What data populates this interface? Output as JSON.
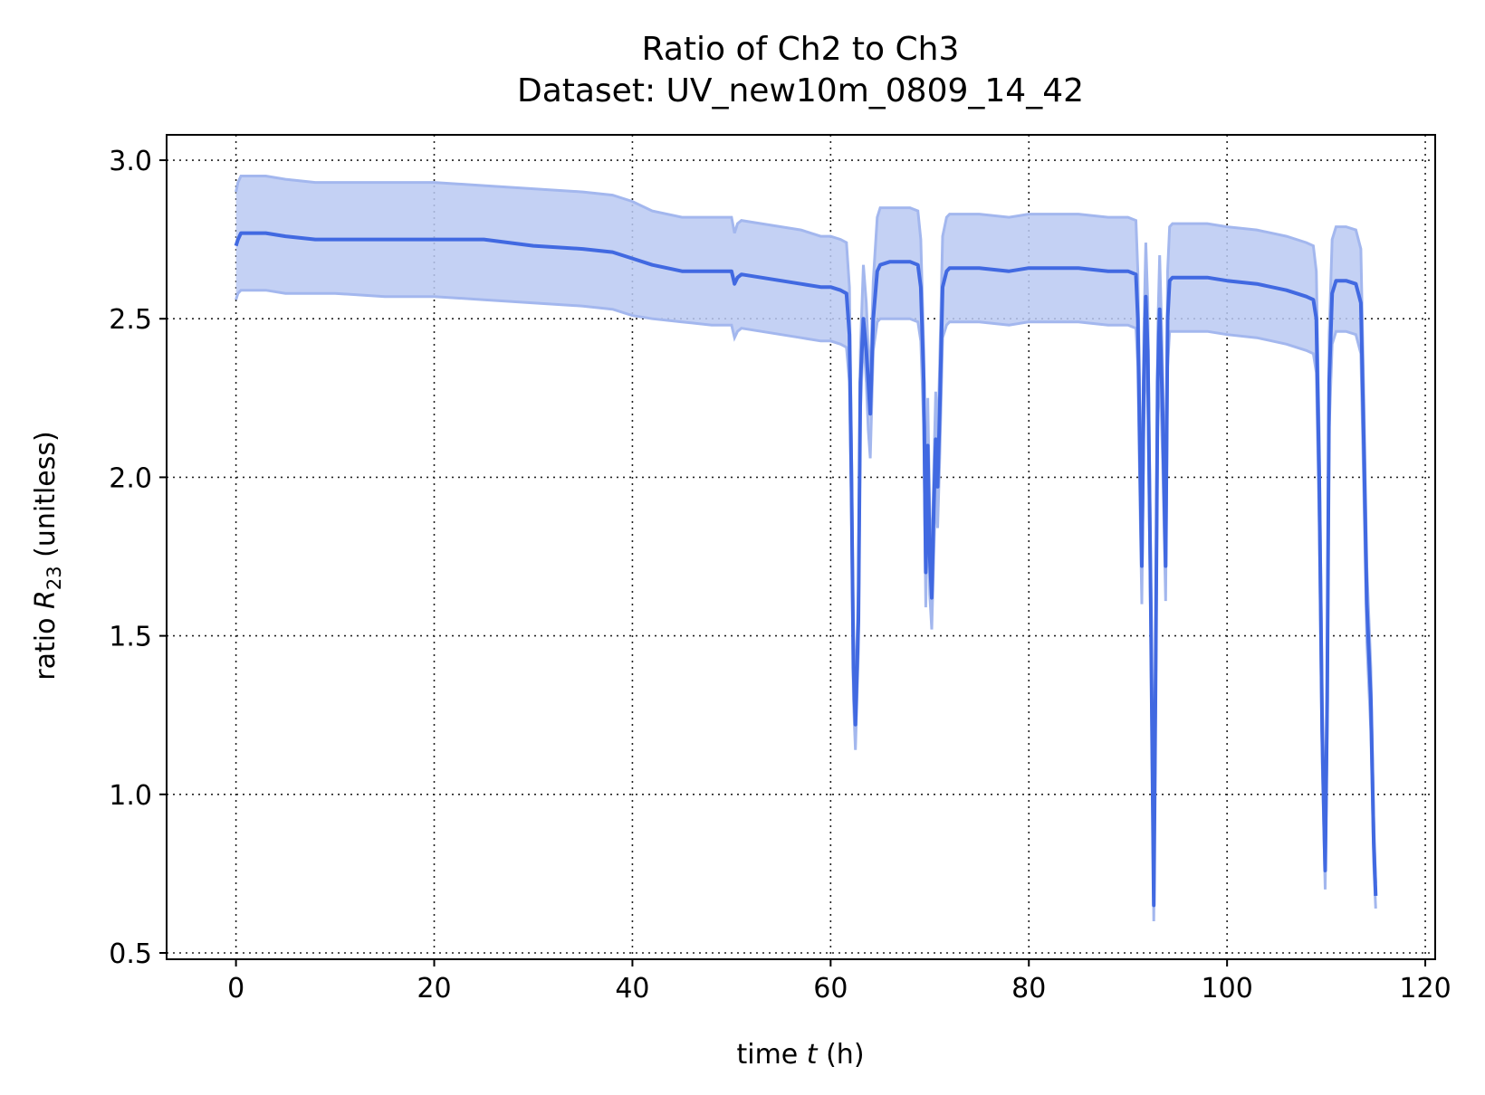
{
  "chart_data": {
    "type": "line",
    "title": "Ratio of Ch2 to Ch3",
    "subtitle": "Dataset: UV_new10m_0809_14_42",
    "xlabel_main": "time ",
    "xlabel_var": "t",
    "xlabel_unit": " (h)",
    "ylabel_main": "ratio ",
    "ylabel_var": "R",
    "ylabel_sub": "23",
    "ylabel_unit": " (unitless)",
    "xlim": [
      -7,
      121
    ],
    "ylim": [
      0.48,
      3.08
    ],
    "xticks": [
      0,
      20,
      40,
      60,
      80,
      100,
      120
    ],
    "xtick_labels": [
      "0",
      "20",
      "40",
      "60",
      "80",
      "100",
      "120"
    ],
    "yticks": [
      0.5,
      1.0,
      1.5,
      2.0,
      2.5,
      3.0
    ],
    "ytick_labels": [
      "0.5",
      "1.0",
      "1.5",
      "2.0",
      "2.5",
      "3.0"
    ],
    "grid": true,
    "colors": {
      "line": "#4169e1",
      "band": "#bac9f2",
      "band_edge": "#a3b7ee"
    },
    "series": [
      {
        "x": [
          0,
          0.2,
          0.5,
          1,
          3,
          5,
          8,
          10,
          15,
          20,
          25,
          30,
          35,
          38,
          40,
          42,
          45,
          48,
          50,
          50.3,
          50.6,
          51,
          53,
          55,
          57,
          59,
          60,
          61,
          61.6,
          61.9,
          62.1,
          62.3,
          62.5,
          62.8,
          63,
          63.3,
          63.6,
          63.8,
          64,
          64.3,
          64.7,
          65,
          66,
          67,
          68,
          68.8,
          69.1,
          69.4,
          69.6,
          69.8,
          70.0,
          70.2,
          70.4,
          70.6,
          70.8,
          71.0,
          71.3,
          71.7,
          72,
          75,
          78,
          80,
          82,
          85,
          88,
          90,
          90.8,
          91.0,
          91.2,
          91.4,
          91.6,
          91.8,
          92.0,
          92.3,
          92.6,
          92.8,
          93.0,
          93.2,
          93.5,
          93.8,
          94.0,
          94.2,
          94.5,
          94.8,
          95,
          96,
          98,
          100,
          103,
          106,
          108,
          108.7,
          109.0,
          109.3,
          109.6,
          109.9,
          110.1,
          110.3,
          110.6,
          111,
          112,
          113,
          113.5,
          113.8,
          114.1,
          114.5,
          114.8,
          115
        ],
        "y": [
          2.73,
          2.75,
          2.77,
          2.77,
          2.77,
          2.76,
          2.75,
          2.75,
          2.75,
          2.75,
          2.75,
          2.73,
          2.72,
          2.71,
          2.69,
          2.67,
          2.65,
          2.65,
          2.65,
          2.61,
          2.63,
          2.64,
          2.63,
          2.62,
          2.61,
          2.6,
          2.6,
          2.59,
          2.58,
          2.45,
          2.0,
          1.4,
          1.22,
          1.55,
          2.3,
          2.5,
          2.4,
          2.3,
          2.2,
          2.5,
          2.65,
          2.67,
          2.68,
          2.68,
          2.68,
          2.67,
          2.6,
          2.3,
          1.7,
          2.1,
          1.75,
          1.62,
          1.9,
          2.12,
          1.97,
          2.2,
          2.6,
          2.65,
          2.66,
          2.66,
          2.65,
          2.66,
          2.66,
          2.66,
          2.65,
          2.65,
          2.64,
          2.5,
          2.1,
          1.72,
          2.3,
          2.57,
          2.4,
          1.6,
          0.65,
          1.4,
          2.3,
          2.53,
          2.2,
          1.72,
          2.5,
          2.62,
          2.63,
          2.63,
          2.63,
          2.63,
          2.63,
          2.62,
          2.61,
          2.59,
          2.57,
          2.56,
          2.5,
          2.0,
          1.2,
          0.76,
          1.3,
          2.3,
          2.58,
          2.62,
          2.62,
          2.61,
          2.55,
          2.1,
          1.6,
          1.3,
          0.85,
          0.68
        ],
        "lower": [
          2.56,
          2.58,
          2.59,
          2.59,
          2.59,
          2.58,
          2.58,
          2.58,
          2.57,
          2.57,
          2.56,
          2.55,
          2.54,
          2.53,
          2.51,
          2.5,
          2.49,
          2.48,
          2.48,
          2.44,
          2.46,
          2.47,
          2.46,
          2.45,
          2.44,
          2.43,
          2.43,
          2.42,
          2.41,
          2.3,
          1.9,
          1.3,
          1.14,
          1.45,
          2.2,
          2.45,
          2.3,
          2.15,
          2.06,
          2.4,
          2.49,
          2.5,
          2.5,
          2.5,
          2.5,
          2.49,
          2.43,
          2.15,
          1.59,
          1.95,
          1.63,
          1.52,
          1.75,
          1.98,
          1.84,
          2.05,
          2.44,
          2.48,
          2.49,
          2.49,
          2.48,
          2.49,
          2.49,
          2.49,
          2.48,
          2.48,
          2.47,
          2.35,
          1.95,
          1.6,
          2.15,
          2.4,
          2.25,
          1.5,
          0.6,
          1.3,
          2.15,
          2.37,
          2.05,
          1.61,
          2.35,
          2.46,
          2.46,
          2.46,
          2.46,
          2.46,
          2.46,
          2.45,
          2.44,
          2.42,
          2.4,
          2.39,
          2.33,
          1.85,
          1.1,
          0.7,
          1.2,
          2.15,
          2.42,
          2.46,
          2.46,
          2.45,
          2.39,
          1.95,
          1.48,
          1.2,
          0.78,
          0.64
        ],
        "upper": [
          2.9,
          2.93,
          2.95,
          2.95,
          2.95,
          2.94,
          2.93,
          2.93,
          2.93,
          2.93,
          2.92,
          2.91,
          2.9,
          2.89,
          2.87,
          2.84,
          2.82,
          2.82,
          2.82,
          2.77,
          2.8,
          2.81,
          2.8,
          2.79,
          2.78,
          2.76,
          2.76,
          2.75,
          2.74,
          2.6,
          2.12,
          1.5,
          1.32,
          1.65,
          2.4,
          2.67,
          2.55,
          2.4,
          2.32,
          2.62,
          2.82,
          2.85,
          2.85,
          2.85,
          2.85,
          2.84,
          2.75,
          2.4,
          1.82,
          2.25,
          1.88,
          1.73,
          2.02,
          2.27,
          2.1,
          2.35,
          2.76,
          2.82,
          2.83,
          2.83,
          2.82,
          2.83,
          2.83,
          2.83,
          2.82,
          2.82,
          2.81,
          2.65,
          2.25,
          1.82,
          2.45,
          2.74,
          2.55,
          1.7,
          0.7,
          1.5,
          2.45,
          2.7,
          2.35,
          1.84,
          2.65,
          2.79,
          2.8,
          2.8,
          2.8,
          2.8,
          2.8,
          2.79,
          2.78,
          2.76,
          2.74,
          2.73,
          2.65,
          2.15,
          1.3,
          0.82,
          1.4,
          2.45,
          2.75,
          2.79,
          2.79,
          2.78,
          2.72,
          2.25,
          1.72,
          1.4,
          0.92,
          0.72
        ]
      }
    ]
  }
}
